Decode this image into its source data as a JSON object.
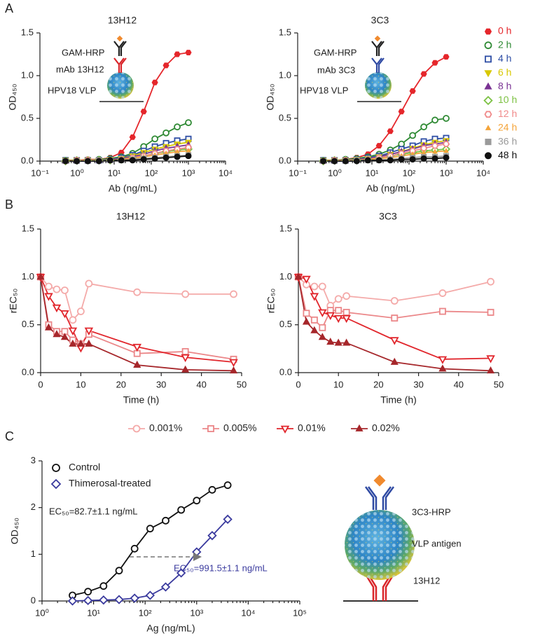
{
  "chart_data": [
    {
      "type": "line",
      "panel_label": "A",
      "title": "13H12",
      "x_label": "Ab (ng/mL)",
      "y_label": "OD₄₅₀",
      "xscale": "log",
      "xlim": [
        0.1,
        10000
      ],
      "xticks": [
        {
          "value": 0.1,
          "label": "10⁻¹"
        },
        {
          "value": 1,
          "label": "10⁰"
        },
        {
          "value": 10,
          "label": "10¹"
        },
        {
          "value": 100,
          "label": "10²"
        },
        {
          "value": 1000,
          "label": "10³"
        },
        {
          "value": 10000,
          "label": "10⁴"
        }
      ],
      "ylim": [
        0,
        1.5
      ],
      "yticks": [
        {
          "value": 0,
          "label": "0.0"
        },
        {
          "value": 0.5,
          "label": "0.5"
        },
        {
          "value": 1,
          "label": "1.0"
        },
        {
          "value": 1.5,
          "label": "1.5"
        }
      ],
      "legend": "right",
      "annotations": [
        "GAM-HRP",
        "mAb 13H12",
        "HPV18 VLP"
      ],
      "x": [
        0.49,
        0.98,
        1.95,
        3.9,
        7.8,
        15.6,
        31.3,
        62.5,
        125,
        250,
        500,
        1000
      ],
      "series": [
        {
          "name": "0 h",
          "color": "#e5262b",
          "marker": "hexagon",
          "values": [
            0.01,
            0.01,
            0.02,
            0.02,
            0.04,
            0.1,
            0.28,
            0.58,
            0.92,
            1.12,
            1.25,
            1.27
          ]
        },
        {
          "name": "2 h",
          "color": "#2f8a34",
          "marker": "circle-open",
          "values": [
            0.01,
            0.01,
            0.01,
            0.02,
            0.03,
            0.05,
            0.09,
            0.17,
            0.26,
            0.33,
            0.4,
            0.45
          ]
        },
        {
          "name": "4 h",
          "color": "#2e4ea5",
          "marker": "square-open",
          "values": [
            0.01,
            0.01,
            0.01,
            0.01,
            0.02,
            0.04,
            0.07,
            0.12,
            0.17,
            0.21,
            0.24,
            0.26
          ]
        },
        {
          "name": "6 h",
          "color": "#d8c800",
          "marker": "triangle-down",
          "values": [
            0.01,
            0.01,
            0.01,
            0.01,
            0.02,
            0.03,
            0.06,
            0.1,
            0.14,
            0.17,
            0.2,
            0.22
          ]
        },
        {
          "name": "8 h",
          "color": "#7a3393",
          "marker": "triangle-up",
          "values": [
            0,
            0.01,
            0.01,
            0.01,
            0.02,
            0.03,
            0.05,
            0.08,
            0.12,
            0.15,
            0.17,
            0.19
          ]
        },
        {
          "name": "10 h",
          "color": "#7cc143",
          "marker": "diamond-open",
          "values": [
            0,
            0.01,
            0.01,
            0.01,
            0.01,
            0.02,
            0.04,
            0.06,
            0.09,
            0.11,
            0.13,
            0.14
          ]
        },
        {
          "name": "12 h",
          "color": "#f08a8a",
          "marker": "hexagon-open",
          "values": [
            0,
            0.01,
            0.01,
            0.01,
            0.01,
            0.02,
            0.04,
            0.06,
            0.09,
            0.12,
            0.14,
            0.16
          ]
        },
        {
          "name": "24 h",
          "color": "#f4a43a",
          "marker": "triangle-small",
          "values": [
            0,
            0,
            0.01,
            0.01,
            0.01,
            0.02,
            0.03,
            0.05,
            0.07,
            0.09,
            0.11,
            0.12
          ]
        },
        {
          "name": "36 h",
          "color": "#9a9a9a",
          "marker": "square",
          "values": [
            0,
            0,
            0,
            0.01,
            0.01,
            0.01,
            0.02,
            0.03,
            0.04,
            0.05,
            0.06,
            0.07
          ]
        },
        {
          "name": "48 h",
          "color": "#111111",
          "marker": "circle",
          "values": [
            0,
            0,
            0,
            0,
            0.01,
            0.01,
            0.01,
            0.02,
            0.03,
            0.04,
            0.05,
            0.06
          ]
        }
      ]
    },
    {
      "type": "line",
      "title": "3C3",
      "x_label": "Ab (ng/mL)",
      "y_label": "OD₄₅₀",
      "xscale": "log",
      "xlim": [
        0.1,
        10000
      ],
      "xticks": [
        {
          "value": 0.1,
          "label": "10⁻¹"
        },
        {
          "value": 1,
          "label": "10⁰"
        },
        {
          "value": 10,
          "label": "10¹"
        },
        {
          "value": 100,
          "label": "10²"
        },
        {
          "value": 1000,
          "label": "10³"
        },
        {
          "value": 10000,
          "label": "10⁴"
        }
      ],
      "ylim": [
        0,
        1.5
      ],
      "yticks": [
        {
          "value": 0,
          "label": "0.0"
        },
        {
          "value": 0.5,
          "label": "0.5"
        },
        {
          "value": 1,
          "label": "1.0"
        },
        {
          "value": 1.5,
          "label": "1.5"
        }
      ],
      "annotations": [
        "GAM-HRP",
        "mAb 3C3",
        "HPV18 VLP"
      ],
      "x": [
        0.49,
        0.98,
        1.95,
        3.9,
        7.8,
        15.6,
        31.3,
        62.5,
        125,
        250,
        500,
        1000
      ],
      "series": [
        {
          "color": "#e5262b",
          "marker": "hexagon",
          "values": [
            0.01,
            0.01,
            0.02,
            0.04,
            0.08,
            0.18,
            0.35,
            0.58,
            0.82,
            1.02,
            1.15,
            1.22
          ]
        },
        {
          "color": "#2f8a34",
          "marker": "circle-open",
          "values": [
            0.01,
            0.01,
            0.02,
            0.03,
            0.05,
            0.08,
            0.13,
            0.2,
            0.3,
            0.4,
            0.48,
            0.5
          ]
        },
        {
          "color": "#2e4ea5",
          "marker": "square-open",
          "values": [
            0.01,
            0.01,
            0.01,
            0.02,
            0.04,
            0.06,
            0.1,
            0.14,
            0.18,
            0.23,
            0.26,
            0.27
          ]
        },
        {
          "color": "#d8c800",
          "marker": "triangle-down",
          "values": [
            0.01,
            0.01,
            0.01,
            0.02,
            0.03,
            0.05,
            0.08,
            0.11,
            0.15,
            0.19,
            0.22,
            0.24
          ]
        },
        {
          "color": "#7a3393",
          "marker": "triangle-up",
          "values": [
            0,
            0.01,
            0.01,
            0.02,
            0.03,
            0.05,
            0.08,
            0.11,
            0.14,
            0.18,
            0.2,
            0.22
          ]
        },
        {
          "color": "#7cc143",
          "marker": "diamond-open",
          "values": [
            0,
            0.01,
            0.01,
            0.01,
            0.02,
            0.04,
            0.06,
            0.08,
            0.1,
            0.12,
            0.13,
            0.14
          ]
        },
        {
          "color": "#f08a8a",
          "marker": "hexagon-open",
          "values": [
            0,
            0.01,
            0.01,
            0.01,
            0.02,
            0.04,
            0.06,
            0.09,
            0.12,
            0.15,
            0.18,
            0.2
          ]
        },
        {
          "color": "#f4a43a",
          "marker": "triangle-small",
          "values": [
            0,
            0,
            0.01,
            0.01,
            0.02,
            0.03,
            0.04,
            0.06,
            0.08,
            0.1,
            0.11,
            0.12
          ]
        },
        {
          "color": "#9a9a9a",
          "marker": "square",
          "values": [
            0,
            0,
            0,
            0.01,
            0.01,
            0.01,
            0.02,
            0.03,
            0.04,
            0.05,
            0.05,
            0.06
          ]
        },
        {
          "color": "#111111",
          "marker": "circle",
          "values": [
            0,
            0,
            0,
            0,
            0.01,
            0.01,
            0.01,
            0.02,
            0.02,
            0.03,
            0.03,
            0.04
          ]
        }
      ]
    },
    {
      "type": "line",
      "panel_label": "B",
      "title": "13H12",
      "x_label": "Time (h)",
      "y_label": "rEC₅₀",
      "xlim": [
        0,
        50
      ],
      "xticks": [
        0,
        10,
        20,
        30,
        40,
        50
      ],
      "ylim": [
        0,
        1.5
      ],
      "yticks": [
        {
          "value": 0,
          "label": "0.0"
        },
        {
          "value": 0.5,
          "label": "0.5"
        },
        {
          "value": 1,
          "label": "1.0"
        },
        {
          "value": 1.5,
          "label": "1.5"
        }
      ],
      "legend": "bottom",
      "x": [
        0,
        2,
        4,
        6,
        8,
        10,
        12,
        24,
        36,
        48
      ],
      "series": [
        {
          "name": "0.001%",
          "color": "#f4aaa9",
          "marker": "circle-open",
          "values": [
            1.0,
            0.9,
            0.87,
            0.86,
            0.55,
            0.64,
            0.93,
            0.84,
            0.82,
            0.82
          ]
        },
        {
          "name": "0.005%",
          "color": "#eb8789",
          "marker": "square-open",
          "values": [
            1.0,
            0.5,
            0.43,
            0.43,
            0.34,
            0.3,
            0.4,
            0.2,
            0.22,
            0.14
          ]
        },
        {
          "name": "0.01%",
          "color": "#e1262c",
          "marker": "triangle-down-open",
          "values": [
            1.0,
            0.8,
            0.68,
            0.62,
            0.44,
            0.26,
            0.44,
            0.27,
            0.16,
            0.11
          ]
        },
        {
          "name": "0.02%",
          "color": "#a6272b",
          "marker": "triangle-up",
          "values": [
            1.0,
            0.47,
            0.4,
            0.37,
            0.3,
            0.3,
            0.3,
            0.08,
            0.03,
            0.02
          ]
        }
      ]
    },
    {
      "type": "line",
      "title": "3C3",
      "x_label": "Time (h)",
      "y_label": "rEC₅₀",
      "xlim": [
        0,
        50
      ],
      "xticks": [
        0,
        10,
        20,
        30,
        40,
        50
      ],
      "ylim": [
        0,
        1.5
      ],
      "yticks": [
        {
          "value": 0,
          "label": "0.0"
        },
        {
          "value": 0.5,
          "label": "0.5"
        },
        {
          "value": 1,
          "label": "1.0"
        },
        {
          "value": 1.5,
          "label": "1.5"
        }
      ],
      "x": [
        0,
        2,
        4,
        6,
        8,
        10,
        12,
        24,
        36,
        48
      ],
      "series": [
        {
          "color": "#f4aaa9",
          "marker": "circle-open",
          "values": [
            1.0,
            0.92,
            0.9,
            0.9,
            0.7,
            0.77,
            0.8,
            0.75,
            0.83,
            0.95
          ]
        },
        {
          "color": "#eb8789",
          "marker": "square-open",
          "values": [
            1.0,
            0.62,
            0.55,
            0.47,
            0.65,
            0.65,
            0.63,
            0.57,
            0.64,
            0.63
          ]
        },
        {
          "color": "#e1262c",
          "marker": "triangle-down-open",
          "values": [
            1.0,
            0.98,
            0.8,
            0.63,
            0.6,
            0.57,
            0.57,
            0.34,
            0.14,
            0.15
          ]
        },
        {
          "color": "#a6272b",
          "marker": "triangle-up",
          "values": [
            1.0,
            0.53,
            0.44,
            0.37,
            0.32,
            0.31,
            0.31,
            0.11,
            0.04,
            0.02
          ]
        }
      ]
    },
    {
      "type": "line",
      "panel_label": "C",
      "x_label": "Ag (ng/mL)",
      "y_label": "OD₄₅₀",
      "xscale": "log",
      "xlim": [
        1,
        100000
      ],
      "xticks": [
        {
          "value": 1,
          "label": "10⁰"
        },
        {
          "value": 10,
          "label": "10¹"
        },
        {
          "value": 100,
          "label": "10²"
        },
        {
          "value": 1000,
          "label": "10³"
        },
        {
          "value": 10000,
          "label": "10⁴"
        },
        {
          "value": 100000,
          "label": "10⁵"
        }
      ],
      "ylim": [
        0,
        3
      ],
      "yticks": [
        0,
        1,
        2,
        3
      ],
      "legend": "upper left",
      "annotations": [
        {
          "text": "EC₅₀=82.7±1.1 ng/mL",
          "color": "#222222"
        },
        {
          "text": "EC₅₀=991.5±1.1 ng/mL",
          "color": "#3b3b9e"
        }
      ],
      "x": [
        3.9,
        7.8,
        15.6,
        31.25,
        62.5,
        125,
        250,
        500,
        1000,
        2000,
        4000
      ],
      "series": [
        {
          "name": "Control",
          "color": "#111111",
          "marker": "circle-open",
          "values": [
            0.12,
            0.2,
            0.32,
            0.65,
            1.12,
            1.55,
            1.72,
            1.95,
            2.15,
            2.38,
            2.48
          ]
        },
        {
          "name": "Thimerosal-treated",
          "color": "#3b3b9e",
          "marker": "diamond-open",
          "values": [
            0.0,
            0.01,
            0.02,
            0.03,
            0.06,
            0.12,
            0.3,
            0.6,
            1.05,
            1.4,
            1.75
          ]
        }
      ]
    }
  ],
  "diagram": {
    "labels": [
      "3C3-HRP",
      "VLP antigen",
      "13H12"
    ]
  }
}
